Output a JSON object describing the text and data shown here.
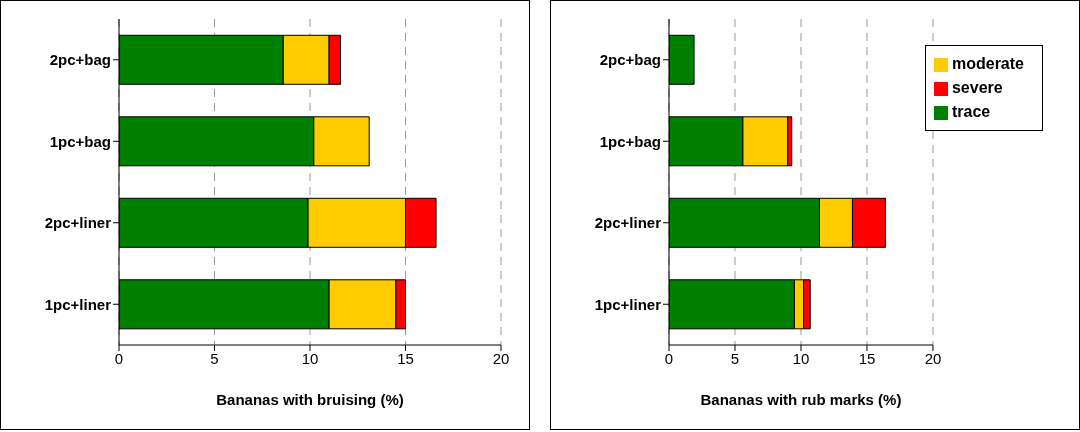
{
  "chart_data": [
    {
      "type": "bar",
      "orientation": "horizontal",
      "stacked": true,
      "xlabel": "Bananas with bruising (%)",
      "categories": [
        "2pc+bag",
        "1pc+bag",
        "2pc+liner",
        "1pc+liner"
      ],
      "xlim": [
        0,
        20
      ],
      "xticks": [
        0,
        5,
        10,
        15,
        20
      ],
      "grid": "x",
      "legend": false,
      "series": [
        {
          "color": "#008000",
          "values": [
            8.6,
            10.2,
            9.9,
            11.0
          ]
        },
        {
          "color": "#ffcc00",
          "values": [
            2.4,
            2.9,
            5.1,
            3.5
          ]
        },
        {
          "color": "#ff0000",
          "values": [
            0.6,
            null,
            1.6,
            0.5
          ]
        }
      ]
    },
    {
      "type": "bar",
      "orientation": "horizontal",
      "stacked": true,
      "xlabel": "Bananas with rub marks (%)",
      "categories": [
        "2pc+bag",
        "1pc+bag",
        "2pc+liner",
        "1pc+liner"
      ],
      "xlim": [
        0,
        20
      ],
      "xticks": [
        0,
        5,
        10,
        15,
        20
      ],
      "grid": "x",
      "legend": "top right",
      "series": [
        {
          "name": "trace",
          "color": "#008000",
          "values": [
            1.9,
            5.6,
            11.4,
            9.5
          ]
        },
        {
          "name": "moderate",
          "color": "#ffcc00",
          "values": [
            null,
            3.4,
            2.5,
            0.7
          ]
        },
        {
          "name": "severe",
          "color": "#ff0000",
          "values": [
            null,
            0.3,
            2.5,
            0.5
          ]
        }
      ]
    }
  ]
}
